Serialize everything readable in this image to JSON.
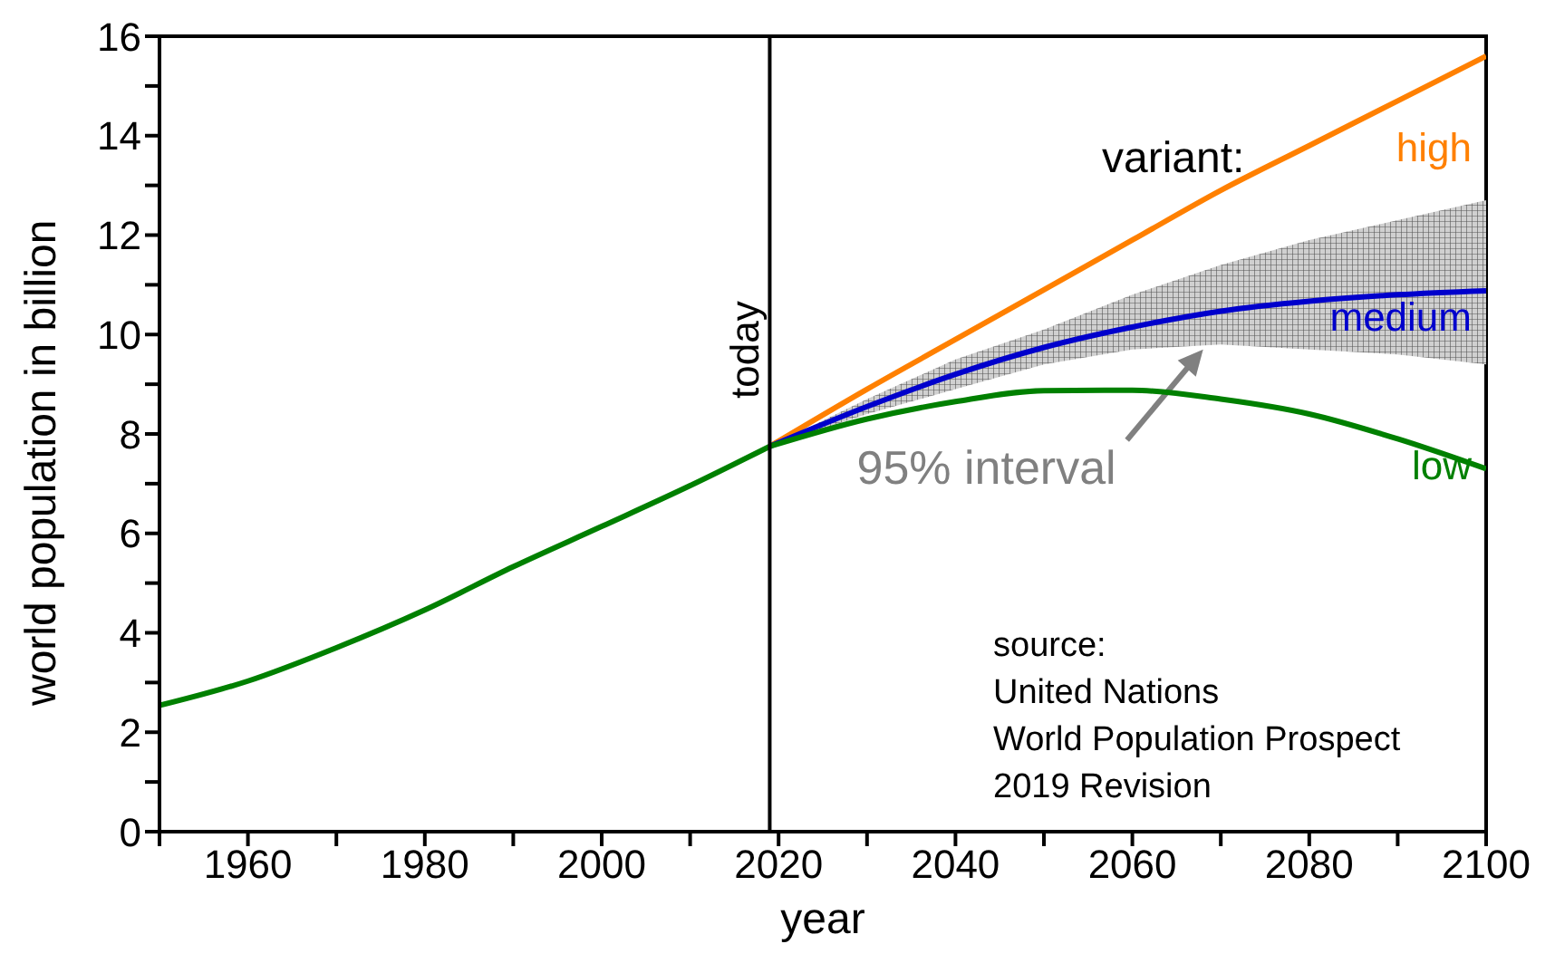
{
  "chart_data": {
    "type": "line",
    "xlabel": "year",
    "ylabel": "world population in billion",
    "xlim": [
      1950,
      2100
    ],
    "xticks": [
      {
        "value": 1950,
        "label": null
      },
      1960,
      {
        "value": 1970,
        "label": null
      },
      1980,
      {
        "value": 1990,
        "label": null
      },
      2000,
      {
        "value": 2010,
        "label": null
      },
      2020,
      {
        "value": 2030,
        "label": null
      },
      2040,
      {
        "value": 2050,
        "label": null
      },
      2060,
      {
        "value": 2070,
        "label": null
      },
      2080,
      {
        "value": 2090,
        "label": null
      },
      2100
    ],
    "ylim": [
      0,
      16
    ],
    "yticks": [
      0,
      {
        "value": 1,
        "label": null
      },
      2,
      {
        "value": 3,
        "label": null
      },
      4,
      {
        "value": 5,
        "label": null
      },
      6,
      {
        "value": 7,
        "label": null
      },
      8,
      {
        "value": 9,
        "label": null
      },
      10,
      {
        "value": 11,
        "label": null
      },
      12,
      {
        "value": 13,
        "label": null
      },
      14,
      {
        "value": 15,
        "label": null
      },
      16
    ],
    "series": [
      {
        "color": "#008000",
        "x": [
          1950,
          1960,
          1970,
          1980,
          1990,
          2000,
          2010,
          2019
        ],
        "values": [
          2.54,
          3.03,
          3.7,
          4.46,
          5.33,
          6.14,
          6.96,
          7.75
        ]
      },
      {
        "name": "high",
        "color": "#ff8000",
        "x": [
          2019,
          2030,
          2040,
          2050,
          2060,
          2070,
          2080,
          2090,
          2100
        ],
        "values": [
          7.75,
          8.9,
          9.9,
          10.9,
          11.9,
          12.9,
          13.8,
          14.7,
          15.6
        ]
      },
      {
        "name": "medium",
        "color": "#0000cc",
        "x": [
          2019,
          2030,
          2040,
          2050,
          2060,
          2070,
          2080,
          2090,
          2100
        ],
        "values": [
          7.75,
          8.55,
          9.2,
          9.74,
          10.15,
          10.47,
          10.67,
          10.8,
          10.88
        ],
        "lower": [
          7.75,
          8.4,
          8.9,
          9.4,
          9.7,
          9.8,
          9.7,
          9.6,
          9.4
        ],
        "upper": [
          7.75,
          8.7,
          9.5,
          10.1,
          10.8,
          11.4,
          11.9,
          12.3,
          12.7
        ]
      },
      {
        "name": "low",
        "color": "#008000",
        "x": [
          2019,
          2030,
          2040,
          2050,
          2060,
          2070,
          2080,
          2090,
          2100
        ],
        "values": [
          7.75,
          8.3,
          8.65,
          8.87,
          8.88,
          8.7,
          8.4,
          7.9,
          7.3
        ]
      }
    ],
    "ref_lines": [
      {
        "axis": "x",
        "value": 2019,
        "label": "today",
        "color": "#000000"
      }
    ],
    "annotations": [
      "variant:",
      {
        "text": "95% interval",
        "x": 2068,
        "y": 9.7
      },
      "source:\nUnited Nations\nWorld Population Prospect\n2019 Revision"
    ],
    "marker": "none",
    "line_style": "solid"
  }
}
